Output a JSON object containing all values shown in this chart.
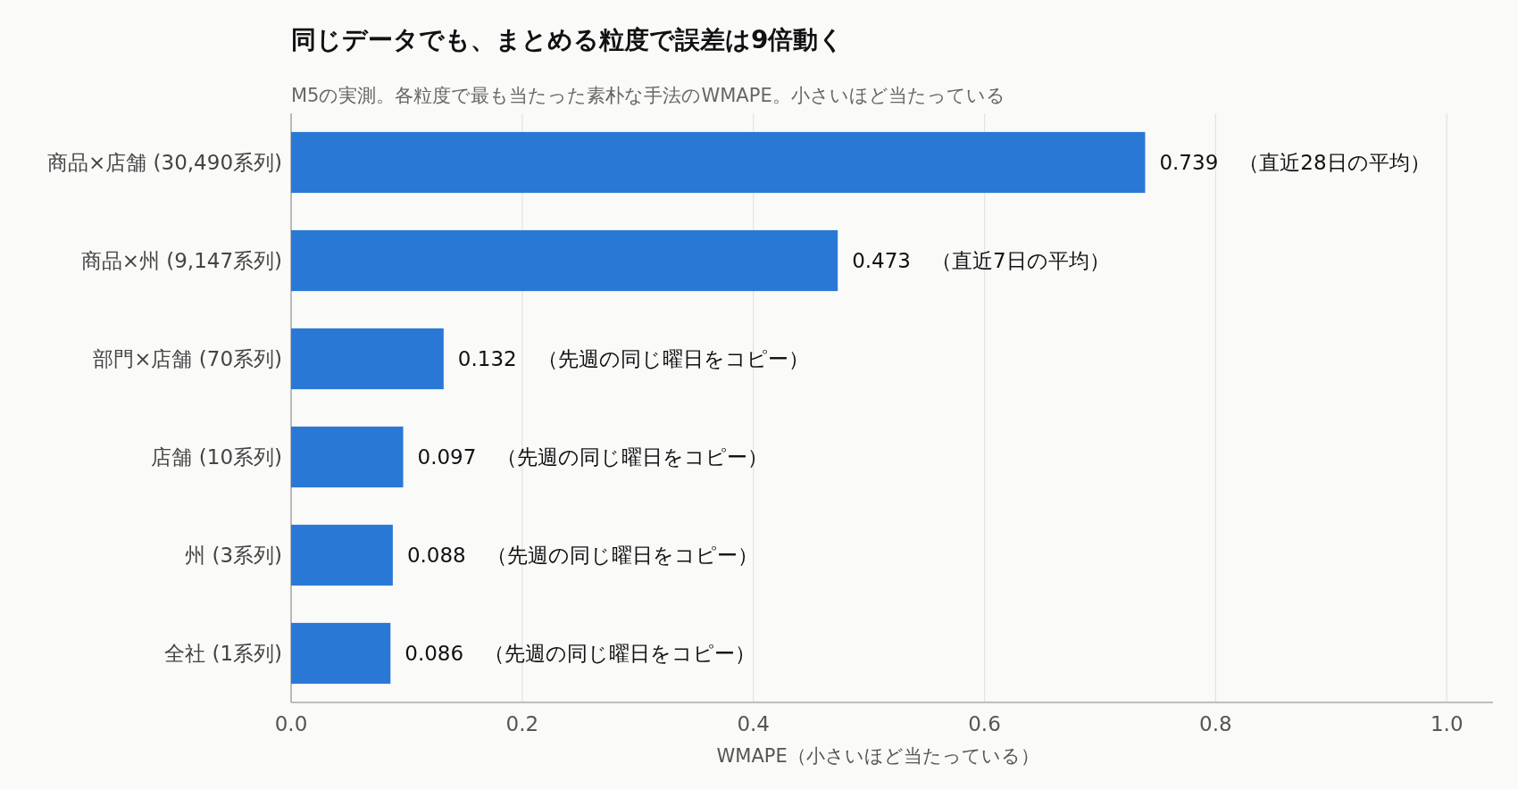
{
  "chart_data": {
    "type": "bar",
    "orientation": "horizontal",
    "title": "同じデータでも、まとめる粒度で誤差は9倍動く",
    "subtitle": "M5の実測。各粒度で最も当たった素朴な手法のWMAPE。小さいほど当たっている",
    "xlabel": "WMAPE（小さいほど当たっている）",
    "categories": [
      "商品×店舗 (30,490系列)",
      "商品×州 (9,147系列)",
      "部門×店舗 (70系列)",
      "店舗 (10系列)",
      "州 (3系列)",
      "全社 (1系列)"
    ],
    "values": [
      0.739,
      0.473,
      0.132,
      0.097,
      0.088,
      0.086
    ],
    "value_labels": [
      "0.739　（直近28日の平均）",
      "0.473　（直近7日の平均）",
      "0.132　（先週の同じ曜日をコピー）",
      "0.097　（先週の同じ曜日をコピー）",
      "0.088　（先週の同じ曜日をコピー）",
      "0.086　（先週の同じ曜日をコピー）"
    ],
    "color": "#2a78d6",
    "xlim": [
      0,
      1.04
    ],
    "xticks": [
      {
        "value": 0,
        "label": "0.0"
      },
      {
        "value": 0.2,
        "label": "0.2"
      },
      {
        "value": 0.4,
        "label": "0.4"
      },
      {
        "value": 0.6,
        "label": "0.6"
      },
      {
        "value": 0.8,
        "label": "0.8"
      },
      {
        "value": 1,
        "label": "1.0"
      }
    ],
    "grid": "x"
  }
}
